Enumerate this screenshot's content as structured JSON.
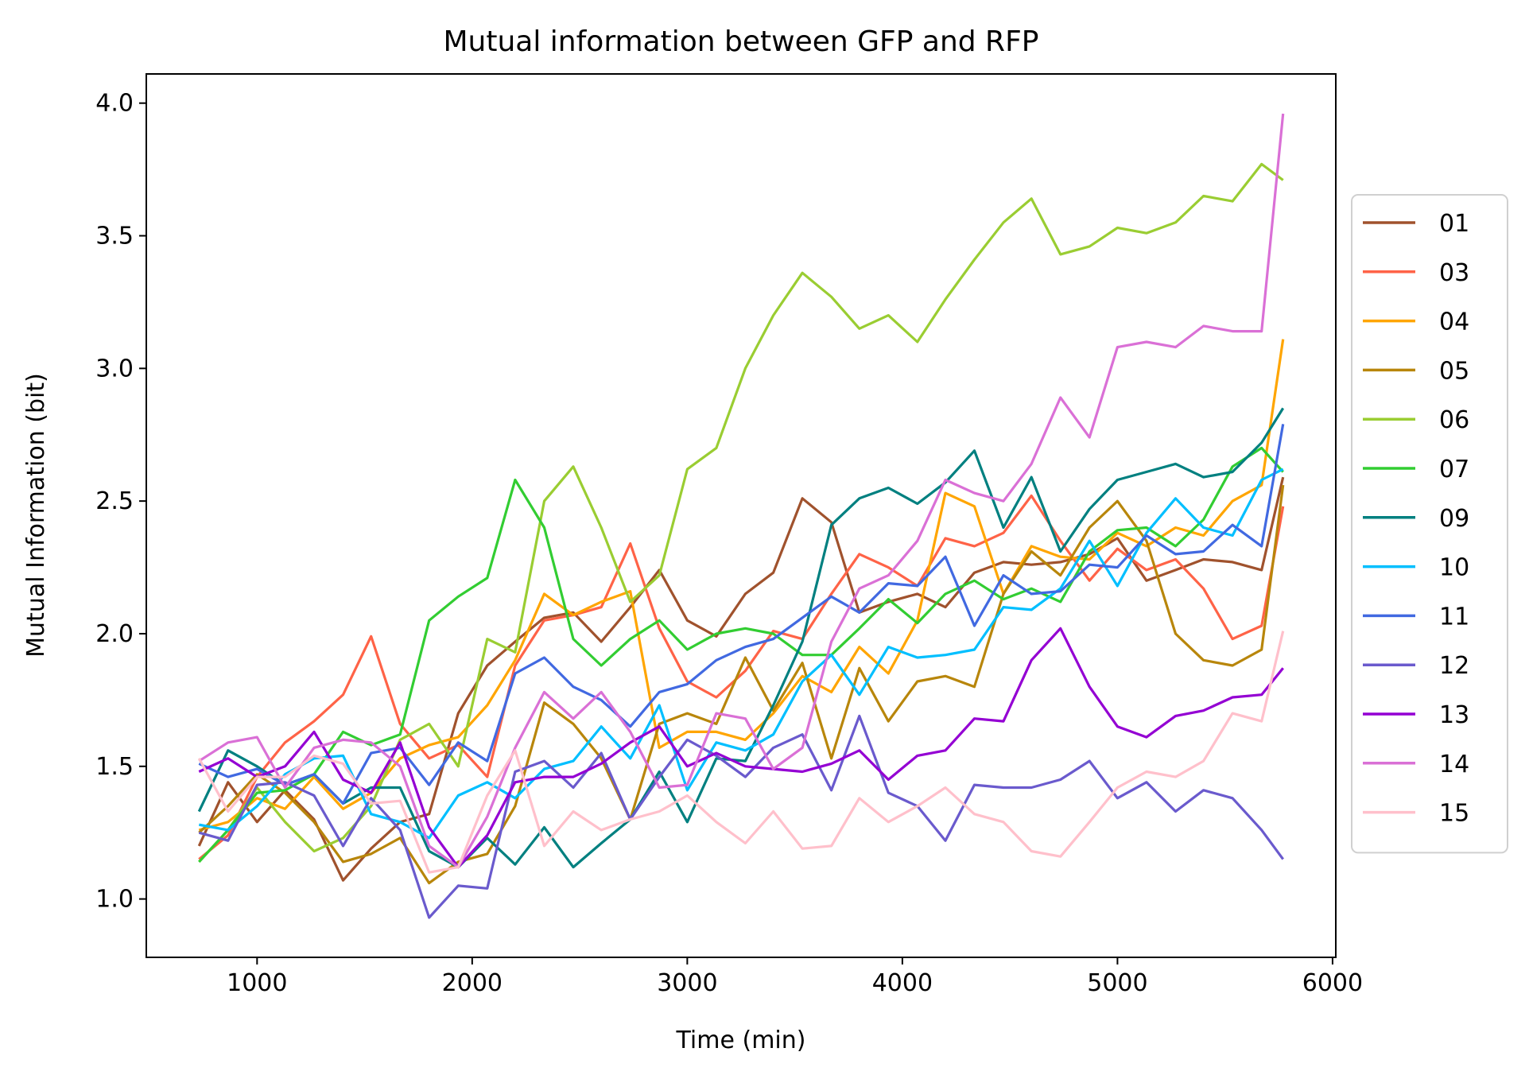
{
  "chart_data": {
    "type": "line",
    "title": "Mutual information between GFP and RFP",
    "xlabel": "Time (min)",
    "ylabel": "Mutual Information (bit)",
    "xlim": [
      485,
      6015
    ],
    "ylim": [
      0.78,
      4.11
    ],
    "xticks": [
      1000,
      2000,
      3000,
      4000,
      5000,
      6000
    ],
    "yticks": [
      1.0,
      1.5,
      2.0,
      2.5,
      3.0,
      3.5,
      4.0
    ],
    "xtick_labels": [
      "1000",
      "2000",
      "3000",
      "4000",
      "5000",
      "6000"
    ],
    "ytick_labels": [
      "1.0",
      "1.5",
      "2.0",
      "2.5",
      "3.0",
      "3.5",
      "4.0"
    ],
    "grid": false,
    "legend_position": "right, outside",
    "x": [
      730,
      865,
      1000,
      1130,
      1265,
      1400,
      1530,
      1665,
      1800,
      1935,
      2070,
      2200,
      2335,
      2470,
      2600,
      2735,
      2870,
      3000,
      3135,
      3270,
      3400,
      3535,
      3670,
      3800,
      3935,
      4070,
      4200,
      4335,
      4470,
      4600,
      4735,
      4870,
      5000,
      5135,
      5270,
      5400,
      5535,
      5670,
      5770
    ],
    "series": [
      {
        "name": "01",
        "color": "#a0522d",
        "values": [
          1.2,
          1.44,
          1.29,
          1.41,
          1.3,
          1.07,
          1.19,
          1.29,
          1.32,
          1.7,
          1.88,
          1.97,
          2.06,
          2.08,
          1.97,
          2.1,
          2.24,
          2.05,
          1.99,
          2.15,
          2.23,
          2.51,
          2.42,
          2.08,
          2.12,
          2.15,
          2.1,
          2.23,
          2.27,
          2.26,
          2.27,
          2.3,
          2.36,
          2.2,
          2.24,
          2.28,
          2.27,
          2.24,
          2.59
        ]
      },
      {
        "name": "03",
        "color": "#ff6347",
        "values": [
          1.15,
          1.24,
          1.46,
          1.59,
          1.67,
          1.77,
          1.99,
          1.66,
          1.53,
          1.58,
          1.46,
          1.88,
          2.05,
          2.07,
          2.1,
          2.34,
          2.02,
          1.82,
          1.76,
          1.86,
          2.01,
          1.98,
          2.15,
          2.3,
          2.25,
          2.18,
          2.36,
          2.33,
          2.38,
          2.52,
          2.35,
          2.2,
          2.32,
          2.24,
          2.28,
          2.17,
          1.98,
          2.03,
          2.48
        ]
      },
      {
        "name": "04",
        "color": "#ffa500",
        "values": [
          1.26,
          1.29,
          1.38,
          1.34,
          1.46,
          1.34,
          1.4,
          1.53,
          1.58,
          1.61,
          1.73,
          1.9,
          2.15,
          2.07,
          2.12,
          2.16,
          1.57,
          1.63,
          1.63,
          1.6,
          1.7,
          1.84,
          1.78,
          1.95,
          1.85,
          2.05,
          2.53,
          2.48,
          2.15,
          2.33,
          2.29,
          2.28,
          2.38,
          2.33,
          2.4,
          2.37,
          2.5,
          2.56,
          3.11
        ]
      },
      {
        "name": "05",
        "color": "#b8860b",
        "values": [
          1.25,
          1.35,
          1.47,
          1.4,
          1.29,
          1.14,
          1.17,
          1.23,
          1.06,
          1.14,
          1.17,
          1.35,
          1.74,
          1.66,
          1.53,
          1.3,
          1.66,
          1.7,
          1.66,
          1.91,
          1.71,
          1.89,
          1.53,
          1.87,
          1.67,
          1.82,
          1.84,
          1.8,
          2.15,
          2.31,
          2.22,
          2.4,
          2.5,
          2.35,
          2.0,
          1.9,
          1.88,
          1.94,
          2.56
        ]
      },
      {
        "name": "06",
        "color": "#9acd32",
        "values": [
          1.14,
          1.26,
          1.42,
          1.29,
          1.18,
          1.23,
          1.35,
          1.6,
          1.66,
          1.5,
          1.98,
          1.93,
          2.5,
          2.63,
          2.4,
          2.12,
          2.22,
          2.62,
          2.7,
          3.0,
          3.2,
          3.36,
          3.27,
          3.15,
          3.2,
          3.1,
          3.26,
          3.41,
          3.55,
          3.64,
          3.43,
          3.46,
          3.53,
          3.51,
          3.55,
          3.65,
          3.63,
          3.77,
          3.71
        ]
      },
      {
        "name": "07",
        "color": "#32cd32",
        "values": [
          1.14,
          1.26,
          1.4,
          1.41,
          1.47,
          1.63,
          1.58,
          1.62,
          2.05,
          2.14,
          2.21,
          2.58,
          2.4,
          1.98,
          1.88,
          1.98,
          2.05,
          1.94,
          2.0,
          2.02,
          2.0,
          1.92,
          1.92,
          2.02,
          2.13,
          2.04,
          2.15,
          2.2,
          2.13,
          2.17,
          2.12,
          2.31,
          2.39,
          2.4,
          2.33,
          2.43,
          2.63,
          2.7,
          2.61
        ]
      },
      {
        "name": "09",
        "color": "#008080",
        "values": [
          1.33,
          1.56,
          1.5,
          1.43,
          1.47,
          1.36,
          1.42,
          1.42,
          1.18,
          1.12,
          1.23,
          1.13,
          1.27,
          1.12,
          1.21,
          1.3,
          1.48,
          1.29,
          1.53,
          1.52,
          1.73,
          1.97,
          2.41,
          2.51,
          2.55,
          2.49,
          2.57,
          2.69,
          2.4,
          2.59,
          2.31,
          2.47,
          2.58,
          2.61,
          2.64,
          2.59,
          2.61,
          2.72,
          2.85
        ]
      },
      {
        "name": "10",
        "color": "#00bfff",
        "values": [
          1.28,
          1.26,
          1.35,
          1.47,
          1.53,
          1.54,
          1.32,
          1.29,
          1.23,
          1.39,
          1.44,
          1.38,
          1.49,
          1.52,
          1.65,
          1.53,
          1.73,
          1.41,
          1.59,
          1.56,
          1.62,
          1.82,
          1.92,
          1.77,
          1.95,
          1.91,
          1.92,
          1.94,
          2.1,
          2.09,
          2.17,
          2.35,
          2.18,
          2.38,
          2.51,
          2.4,
          2.37,
          2.58,
          2.62
        ]
      },
      {
        "name": "11",
        "color": "#4169e1",
        "values": [
          1.51,
          1.46,
          1.49,
          1.43,
          1.47,
          1.36,
          1.55,
          1.57,
          1.43,
          1.59,
          1.52,
          1.85,
          1.91,
          1.8,
          1.75,
          1.65,
          1.78,
          1.81,
          1.9,
          1.95,
          1.98,
          2.06,
          2.14,
          2.08,
          2.19,
          2.18,
          2.29,
          2.03,
          2.22,
          2.15,
          2.16,
          2.26,
          2.25,
          2.37,
          2.3,
          2.31,
          2.41,
          2.33,
          2.79
        ]
      },
      {
        "name": "12",
        "color": "#6a5acd",
        "values": [
          1.25,
          1.22,
          1.43,
          1.44,
          1.39,
          1.2,
          1.38,
          1.26,
          0.93,
          1.05,
          1.04,
          1.48,
          1.52,
          1.42,
          1.55,
          1.3,
          1.46,
          1.6,
          1.54,
          1.46,
          1.57,
          1.62,
          1.41,
          1.69,
          1.4,
          1.35,
          1.22,
          1.43,
          1.42,
          1.42,
          1.45,
          1.52,
          1.38,
          1.44,
          1.33,
          1.41,
          1.38,
          1.26,
          1.15
        ]
      },
      {
        "name": "13",
        "color": "#9400d3",
        "values": [
          1.48,
          1.53,
          1.46,
          1.5,
          1.63,
          1.45,
          1.4,
          1.59,
          1.27,
          1.12,
          1.24,
          1.44,
          1.46,
          1.46,
          1.51,
          1.59,
          1.65,
          1.5,
          1.55,
          1.5,
          1.49,
          1.48,
          1.51,
          1.56,
          1.45,
          1.54,
          1.56,
          1.68,
          1.67,
          1.9,
          2.02,
          1.8,
          1.65,
          1.61,
          1.69,
          1.71,
          1.76,
          1.77,
          1.87
        ]
      },
      {
        "name": "14",
        "color": "#da70d6",
        "values": [
          1.52,
          1.59,
          1.61,
          1.42,
          1.57,
          1.6,
          1.59,
          1.5,
          1.2,
          1.12,
          1.31,
          1.57,
          1.78,
          1.68,
          1.78,
          1.63,
          1.42,
          1.43,
          1.7,
          1.68,
          1.49,
          1.57,
          1.97,
          2.17,
          2.22,
          2.35,
          2.58,
          2.53,
          2.5,
          2.64,
          2.89,
          2.74,
          3.08,
          3.1,
          3.08,
          3.16,
          3.14,
          3.14,
          3.96
        ]
      },
      {
        "name": "15",
        "color": "#ffc0cb",
        "values": [
          1.53,
          1.33,
          1.46,
          1.46,
          1.54,
          1.51,
          1.36,
          1.37,
          1.1,
          1.12,
          1.39,
          1.56,
          1.2,
          1.33,
          1.26,
          1.3,
          1.33,
          1.39,
          1.29,
          1.21,
          1.33,
          1.19,
          1.2,
          1.38,
          1.29,
          1.35,
          1.42,
          1.32,
          1.29,
          1.18,
          1.16,
          1.29,
          1.42,
          1.48,
          1.46,
          1.52,
          1.7,
          1.67,
          2.01
        ]
      }
    ]
  }
}
